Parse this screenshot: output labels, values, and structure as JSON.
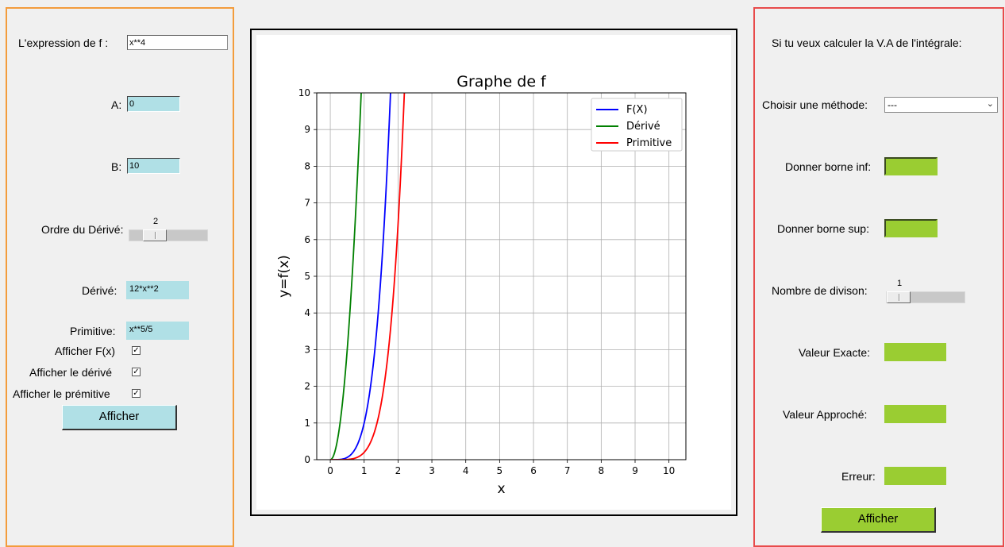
{
  "left": {
    "expression_label": "L'expression de f :",
    "expression_value": "x**4",
    "a_label": "A:",
    "a_value": "0",
    "b_label": "B:",
    "b_value": "10",
    "derive_order_label": "Ordre du Dérivé:",
    "derive_order_value": "2",
    "derive_label": "Dérivé:",
    "derive_value": "12*x**2",
    "primitive_label": "Primitive:",
    "primitive_value": "x**5/5",
    "show_fx_label": "Afficher F(x)",
    "show_derive_label": "Afficher le dérivé",
    "show_primitive_label": "Afficher le prémitive",
    "show_fx_checked": true,
    "show_derive_checked": true,
    "show_primitive_checked": true,
    "afficher_button": "Afficher"
  },
  "right": {
    "intro_label": "Si tu veux calculer la V.A de l'intégrale:",
    "method_label": "Choisir une méthode:",
    "method_value": "---",
    "inf_label": "Donner borne inf:",
    "inf_value": "",
    "sup_label": "Donner borne sup:",
    "sup_value": "",
    "divisions_label": "Nombre de divison:",
    "divisions_value": "1",
    "exact_label": "Valeur Exacte:",
    "exact_value": "",
    "approx_label": "Valeur Approché:",
    "approx_value": "",
    "error_label": "Erreur:",
    "error_value": "",
    "afficher_button": "Afficher"
  },
  "colors": {
    "left_border": "#f39c3c",
    "right_border": "#e84b4b",
    "cyan": "#b0e0e6",
    "green": "#9acd32"
  },
  "chart_data": {
    "type": "line",
    "title": "Graphe de f",
    "xlabel": "x",
    "ylabel": "y=f(x)",
    "xlim": [
      -0.4,
      10.5
    ],
    "ylim": [
      0,
      10
    ],
    "xticks": [
      0,
      1,
      2,
      3,
      4,
      5,
      6,
      7,
      8,
      9,
      10
    ],
    "yticks": [
      0,
      1,
      2,
      3,
      4,
      5,
      6,
      7,
      8,
      9,
      10
    ],
    "grid": true,
    "legend": "top-right",
    "series": [
      {
        "name": "F(X)",
        "color": "#0000ff",
        "expr": "x**4",
        "x": [
          0,
          0.25,
          0.5,
          0.75,
          1.0,
          1.25,
          1.5,
          1.6,
          1.7,
          1.778
        ],
        "y": [
          0,
          0.0039,
          0.0625,
          0.316,
          1.0,
          2.44,
          5.06,
          6.55,
          8.35,
          10.0
        ]
      },
      {
        "name": "Dérivé",
        "color": "#008000",
        "expr": "12*x**2",
        "x": [
          0,
          0.1,
          0.2,
          0.3,
          0.4,
          0.5,
          0.6,
          0.7,
          0.8,
          0.913
        ],
        "y": [
          0,
          0.12,
          0.48,
          1.08,
          1.92,
          3.0,
          4.32,
          5.88,
          7.68,
          10.0
        ]
      },
      {
        "name": "Primitive",
        "color": "#ff0000",
        "expr": "x**5/5",
        "x": [
          0,
          0.5,
          0.75,
          1.0,
          1.25,
          1.5,
          1.75,
          1.9,
          2.0,
          2.1,
          2.187
        ],
        "y": [
          0,
          0.00625,
          0.0475,
          0.2,
          0.61,
          1.52,
          3.28,
          4.95,
          6.4,
          8.17,
          10.0
        ]
      }
    ]
  }
}
